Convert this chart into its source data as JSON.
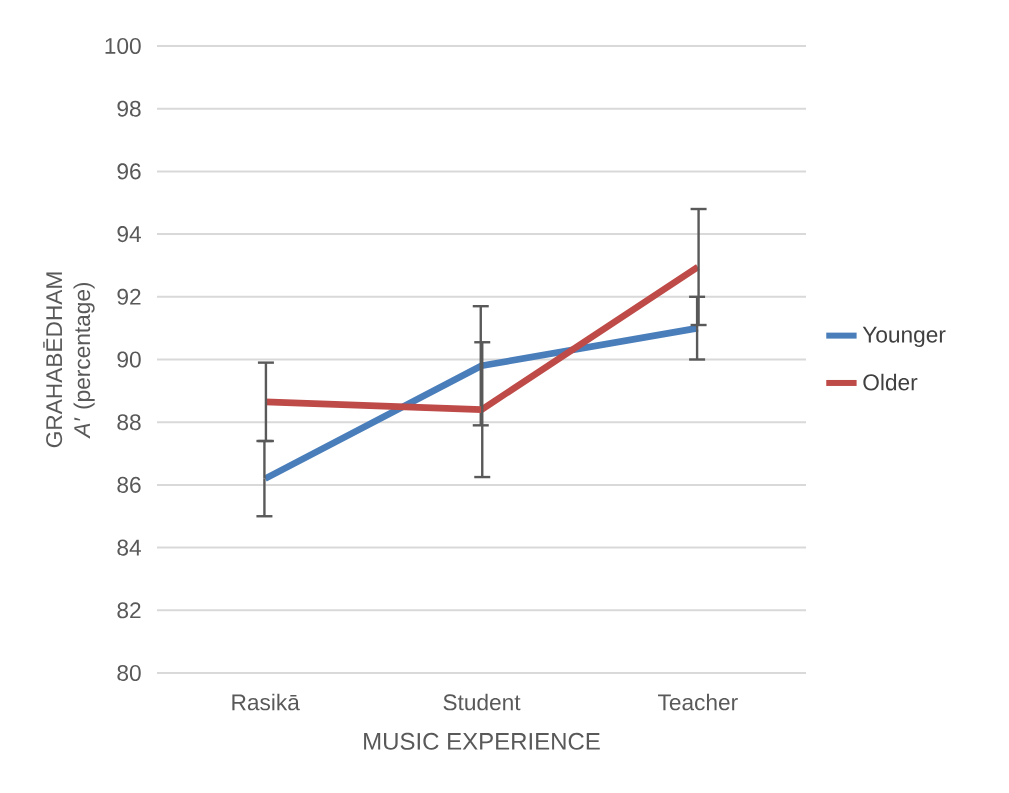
{
  "chart_data": {
    "type": "line",
    "xlabel": "MUSIC EXPERIENCE",
    "ylabel": "GRAHABĒDHAM *A′* (percentage)",
    "categories": [
      "Rasikā",
      "Student",
      "Teacher"
    ],
    "series": [
      {
        "name": "Younger",
        "color": "#4a7ebb",
        "values": [
          86.2,
          89.8,
          91.0
        ],
        "errors": [
          1.2,
          1.9,
          1.0
        ]
      },
      {
        "name": "Older",
        "color": "#be4b48",
        "values": [
          88.65,
          88.4,
          92.95
        ],
        "errors": [
          1.25,
          2.15,
          1.85
        ]
      }
    ],
    "ylim": [
      80,
      100
    ],
    "yticks": [
      80,
      82,
      84,
      86,
      88,
      90,
      92,
      94,
      96,
      98,
      100
    ],
    "grid": "y",
    "legend": "right",
    "marker": "none",
    "line_style": "solid"
  }
}
